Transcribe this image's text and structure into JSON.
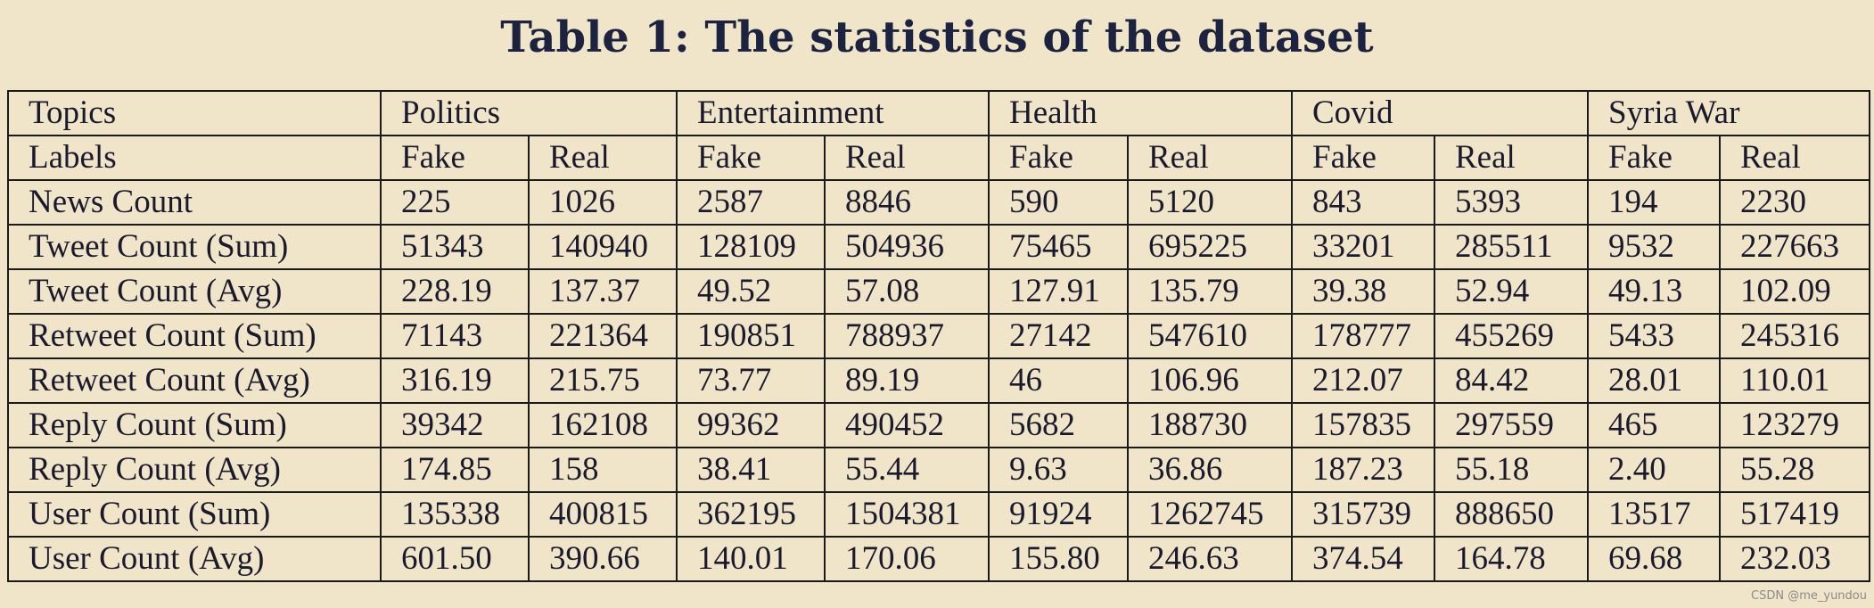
{
  "title": "Table 1: The statistics of the dataset",
  "table": {
    "topics_label": "Topics",
    "topics": [
      "Politics",
      "Entertainment",
      "Health",
      "Covid",
      "Syria War"
    ],
    "labels_label": "Labels",
    "labels": [
      "Fake",
      "Real",
      "Fake",
      "Real",
      "Fake",
      "Real",
      "Fake",
      "Real",
      "Fake",
      "Real"
    ],
    "rows": [
      {
        "name": "News Count",
        "values": [
          "225",
          "1026",
          "2587",
          "8846",
          "590",
          "5120",
          "843",
          "5393",
          "194",
          "2230"
        ]
      },
      {
        "name": "Tweet Count (Sum)",
        "values": [
          "51343",
          "140940",
          "128109",
          "504936",
          "75465",
          "695225",
          "33201",
          "285511",
          "9532",
          "227663"
        ]
      },
      {
        "name": "Tweet Count (Avg)",
        "values": [
          "228.19",
          "137.37",
          "49.52",
          "57.08",
          "127.91",
          "135.79",
          "39.38",
          "52.94",
          "49.13",
          "102.09"
        ]
      },
      {
        "name": "Retweet Count (Sum)",
        "values": [
          "71143",
          "221364",
          "190851",
          "788937",
          "27142",
          "547610",
          "178777",
          "455269",
          "5433",
          "245316"
        ]
      },
      {
        "name": "Retweet Count (Avg)",
        "values": [
          "316.19",
          "215.75",
          "73.77",
          "89.19",
          "46",
          "106.96",
          "212.07",
          "84.42",
          "28.01",
          "110.01"
        ]
      },
      {
        "name": "Reply Count (Sum)",
        "values": [
          "39342",
          "162108",
          "99362",
          "490452",
          "5682",
          "188730",
          "157835",
          "297559",
          "465",
          "123279"
        ]
      },
      {
        "name": "Reply Count (Avg)",
        "values": [
          "174.85",
          "158",
          "38.41",
          "55.44",
          "9.63",
          "36.86",
          "187.23",
          "55.18",
          "2.40",
          "55.28"
        ]
      },
      {
        "name": "User Count (Sum)",
        "values": [
          "135338",
          "400815",
          "362195",
          "1504381",
          "91924",
          "1262745",
          "315739",
          "888650",
          "13517",
          "517419"
        ]
      },
      {
        "name": "User Count (Avg)",
        "values": [
          "601.50",
          "390.66",
          "140.01",
          "170.06",
          "155.80",
          "246.63",
          "374.54",
          "164.78",
          "69.68",
          "232.03"
        ]
      }
    ]
  },
  "watermark": "CSDN @me_yundou"
}
